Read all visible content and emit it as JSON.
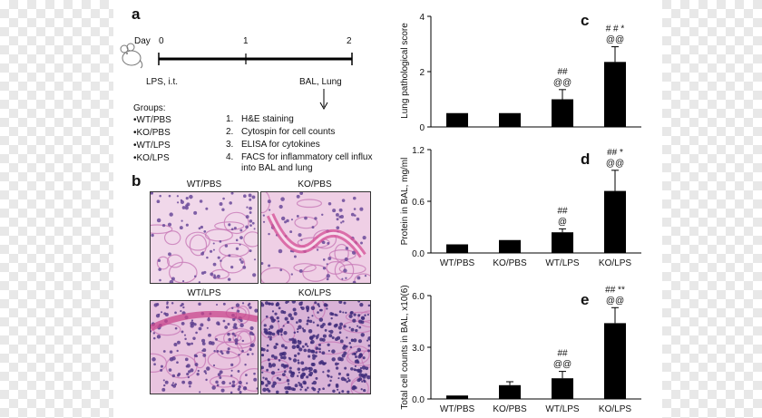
{
  "panel_a": {
    "letter": "a",
    "day_label": "Day",
    "day_ticks": [
      "0",
      "1",
      "2"
    ],
    "lps_label": "LPS, i.t.",
    "bal_label": "BAL, Lung",
    "groups_heading": "Groups:",
    "groups": [
      "•WT/PBS",
      "•KO/PBS",
      "•WT/LPS",
      "•KO/LPS"
    ],
    "steps": [
      {
        "num": "1.",
        "text": "H&E staining"
      },
      {
        "num": "2.",
        "text": "Cytospin for cell counts"
      },
      {
        "num": "3.",
        "text": "ELISA for cytokines"
      },
      {
        "num": "4.",
        "text": "FACS for inflammatory cell influx into BAL and lung"
      }
    ]
  },
  "panel_b": {
    "letter": "b",
    "images": [
      {
        "title": "WT/PBS",
        "tone": "#f1d8ea"
      },
      {
        "title": "KO/PBS",
        "tone": "#efcfe5"
      },
      {
        "title": "WT/LPS",
        "tone": "#e9c4df"
      },
      {
        "title": "KO/LPS",
        "tone": "#d9b3d7"
      }
    ]
  },
  "chart_data": [
    {
      "panel": "c",
      "type": "bar",
      "categories": [
        "WT/PBS",
        "KO/PBS",
        "WT/LPS",
        "KO/LPS"
      ],
      "values": [
        0.5,
        0.5,
        1.0,
        2.35
      ],
      "errors": [
        0,
        0,
        0.35,
        0.55
      ],
      "ylabel": "Lung pathological score",
      "ylim": [
        0,
        4
      ],
      "yticks": [
        "0",
        "2",
        "4"
      ],
      "show_xticklabels": false,
      "annotations": [
        {
          "category": "WT/LPS",
          "lines": [
            "##",
            "@@"
          ]
        },
        {
          "category": "KO/LPS",
          "lines": [
            "# # *",
            "@@"
          ]
        }
      ]
    },
    {
      "panel": "d",
      "type": "bar",
      "categories": [
        "WT/PBS",
        "KO/PBS",
        "WT/LPS",
        "KO/LPS"
      ],
      "values": [
        0.1,
        0.15,
        0.24,
        0.72
      ],
      "errors": [
        0,
        0,
        0.04,
        0.24
      ],
      "ylabel": "Protein in BAL, mg/ml",
      "ylim": [
        0,
        1.2
      ],
      "yticks": [
        "0.0",
        "0.6",
        "1.2"
      ],
      "show_xticklabels": true,
      "annotations": [
        {
          "category": "WT/LPS",
          "lines": [
            "##",
            "@"
          ]
        },
        {
          "category": "KO/LPS",
          "lines": [
            "## *",
            "@@"
          ]
        }
      ]
    },
    {
      "panel": "e",
      "type": "bar",
      "categories": [
        "WT/PBS",
        "KO/PBS",
        "WT/LPS",
        "KO/LPS"
      ],
      "values": [
        0.2,
        0.8,
        1.2,
        4.4
      ],
      "errors": [
        0,
        0.2,
        0.4,
        0.9
      ],
      "ylabel": "Total cell counts in BAL, x10(6)",
      "ylim": [
        0,
        6
      ],
      "yticks": [
        "0.0",
        "3.0",
        "6.0"
      ],
      "show_xticklabels": true,
      "annotations": [
        {
          "category": "WT/LPS",
          "lines": [
            "##",
            "@@"
          ]
        },
        {
          "category": "KO/LPS",
          "lines": [
            "## **",
            "@@"
          ]
        }
      ]
    }
  ]
}
